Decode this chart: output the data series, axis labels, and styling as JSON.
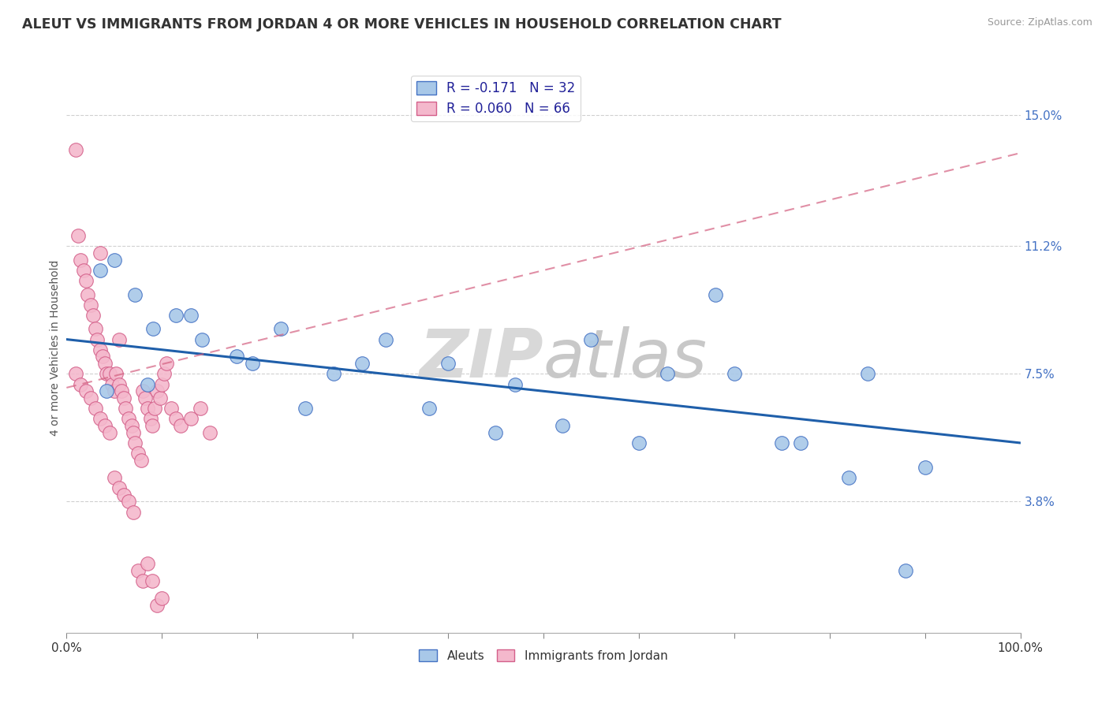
{
  "title": "ALEUT VS IMMIGRANTS FROM JORDAN 4 OR MORE VEHICLES IN HOUSEHOLD CORRELATION CHART",
  "source": "Source: ZipAtlas.com",
  "ylabel": "4 or more Vehicles in Household",
  "ytick_values": [
    3.8,
    7.5,
    11.2,
    15.0
  ],
  "xlim": [
    0,
    100
  ],
  "ylim": [
    0,
    16.5
  ],
  "legend_aleut": "R = -0.171   N = 32",
  "legend_jordan": "R = 0.060   N = 66",
  "aleut_color": "#a8c8e8",
  "aleut_edge_color": "#4472c4",
  "aleut_line_color": "#1f5faa",
  "jordan_color": "#f4b8cc",
  "jordan_edge_color": "#d4608a",
  "jordan_line_color": "#d46080",
  "background_color": "#ffffff",
  "watermark": "ZIPatlas",
  "aleut_R": -0.171,
  "aleut_N": 32,
  "jordan_R": 0.06,
  "jordan_N": 66,
  "aleut_x": [
    3.5,
    5.0,
    7.2,
    9.1,
    11.5,
    14.2,
    17.8,
    22.5,
    28.0,
    33.5,
    40.0,
    47.0,
    55.0,
    63.0,
    70.0,
    77.0,
    84.0,
    90.0,
    4.2,
    8.5,
    13.0,
    19.5,
    25.0,
    31.0,
    38.0,
    45.0,
    52.0,
    60.0,
    68.0,
    75.0,
    82.0,
    88.0
  ],
  "aleut_y": [
    10.5,
    10.8,
    9.8,
    8.8,
    9.2,
    8.5,
    8.0,
    8.8,
    7.5,
    8.5,
    7.8,
    7.2,
    8.5,
    7.5,
    7.5,
    5.5,
    7.5,
    4.8,
    7.0,
    7.2,
    9.2,
    7.8,
    6.5,
    7.8,
    6.5,
    5.8,
    6.0,
    5.5,
    9.8,
    5.5,
    4.5,
    1.8
  ],
  "jordan_x": [
    1.0,
    1.2,
    1.5,
    1.8,
    2.0,
    2.2,
    2.5,
    2.8,
    3.0,
    3.2,
    3.5,
    3.5,
    3.8,
    4.0,
    4.2,
    4.5,
    4.8,
    5.0,
    5.2,
    5.5,
    5.5,
    5.8,
    6.0,
    6.2,
    6.5,
    6.8,
    7.0,
    7.2,
    7.5,
    7.8,
    8.0,
    8.2,
    8.5,
    8.8,
    9.0,
    9.2,
    9.5,
    9.8,
    10.0,
    10.2,
    10.5,
    11.0,
    11.5,
    12.0,
    13.0,
    14.0,
    15.0,
    1.0,
    1.5,
    2.0,
    2.5,
    3.0,
    3.5,
    4.0,
    4.5,
    5.0,
    5.5,
    6.0,
    6.5,
    7.0,
    7.5,
    8.0,
    8.5,
    9.0,
    9.5,
    10.0
  ],
  "jordan_y": [
    14.0,
    11.5,
    10.8,
    10.5,
    10.2,
    9.8,
    9.5,
    9.2,
    8.8,
    8.5,
    8.2,
    11.0,
    8.0,
    7.8,
    7.5,
    7.5,
    7.2,
    7.0,
    7.5,
    7.2,
    8.5,
    7.0,
    6.8,
    6.5,
    6.2,
    6.0,
    5.8,
    5.5,
    5.2,
    5.0,
    7.0,
    6.8,
    6.5,
    6.2,
    6.0,
    6.5,
    7.0,
    6.8,
    7.2,
    7.5,
    7.8,
    6.5,
    6.2,
    6.0,
    6.2,
    6.5,
    5.8,
    7.5,
    7.2,
    7.0,
    6.8,
    6.5,
    6.2,
    6.0,
    5.8,
    4.5,
    4.2,
    4.0,
    3.8,
    3.5,
    1.8,
    1.5,
    2.0,
    1.5,
    0.8,
    1.0
  ]
}
